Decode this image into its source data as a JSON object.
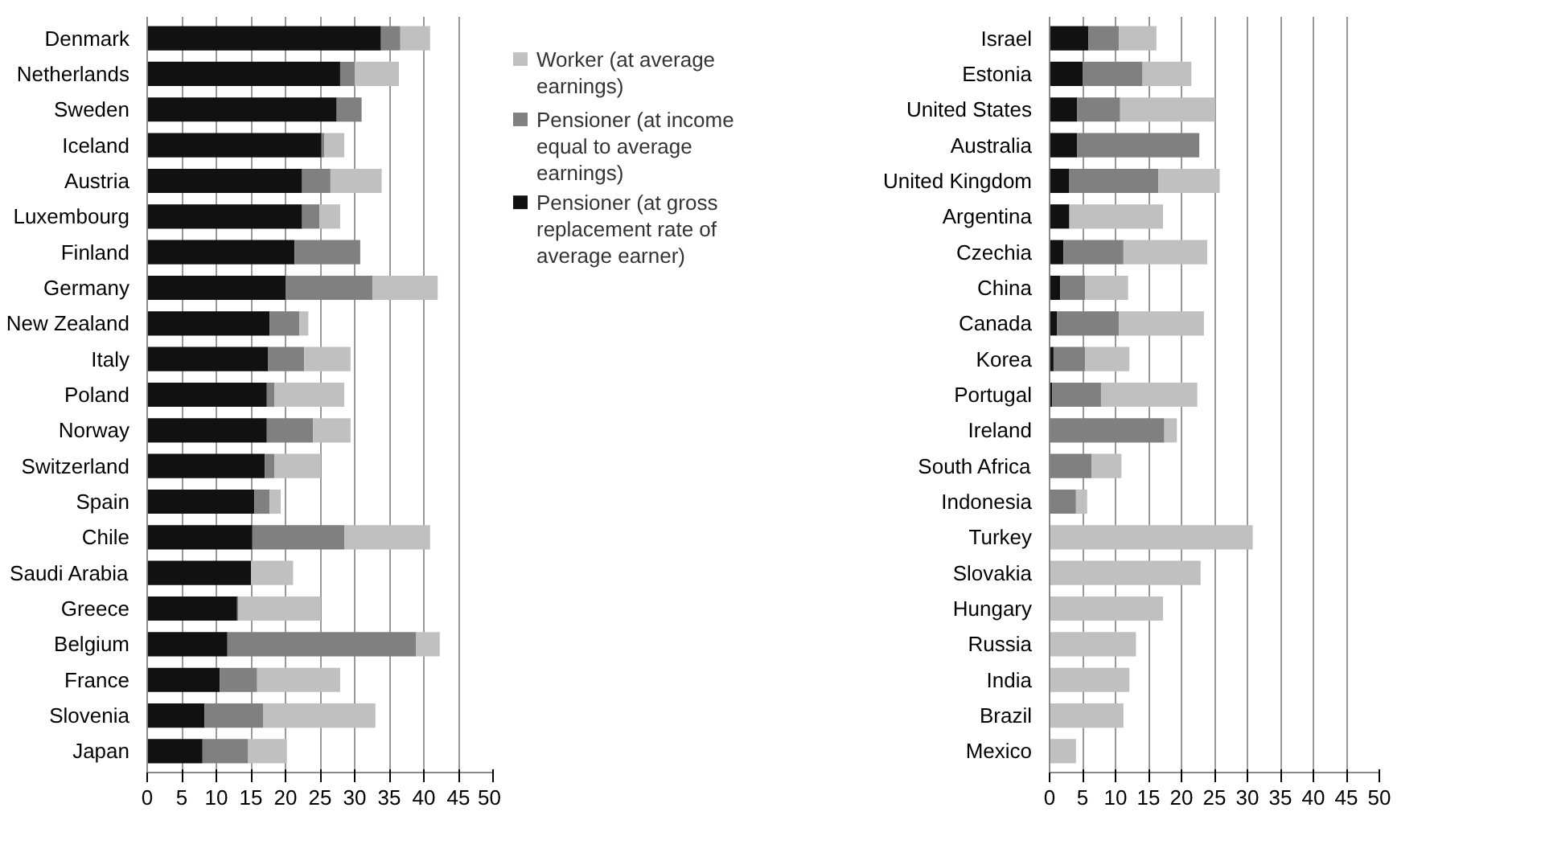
{
  "chart_data": [
    {
      "type": "bar",
      "orientation": "horizontal",
      "stacked": true,
      "grid": "x",
      "legend": "right",
      "categories": [
        "Denmark",
        "Netherlands",
        "Sweden",
        "Iceland",
        "Austria",
        "Luxembourg",
        "Finland",
        "Germany",
        "New Zealand",
        "Italy",
        "Poland",
        "Norway",
        "Switzerland",
        "Spain",
        "Chile",
        "Saudi Arabia",
        "Greece",
        "Belgium",
        "France",
        "Slovenia",
        "Japan"
      ],
      "xlim": [
        0,
        50
      ],
      "xticks": [
        0,
        5,
        10,
        15,
        20,
        25,
        30,
        35,
        40,
        45,
        50
      ],
      "series": [
        {
          "name": "Pensioner (at gross replacement rate of average earner)",
          "color": "#111111",
          "values": [
            33.8,
            27.9,
            27.4,
            25.2,
            22.4,
            22.4,
            21.3,
            20.0,
            17.7,
            17.5,
            17.3,
            17.3,
            17.0,
            15.5,
            15.2,
            15.0,
            13.0,
            11.6,
            10.5,
            8.3,
            8.0
          ]
        },
        {
          "name": "Pensioner (at income equal to average earnings)",
          "color": "#808080",
          "values": [
            2.8,
            2.1,
            3.6,
            0.4,
            4.1,
            2.5,
            9.5,
            12.6,
            4.3,
            5.2,
            1.1,
            6.7,
            1.4,
            2.2,
            13.3,
            0,
            0.2,
            27.3,
            5.4,
            8.5,
            6.6
          ]
        },
        {
          "name": "Worker (at average earnings)",
          "color": "#c0c0c0",
          "values": [
            4.3,
            6.4,
            0,
            2.9,
            7.4,
            3.0,
            0,
            9.4,
            1.3,
            6.7,
            10.1,
            5.4,
            6.7,
            1.6,
            12.4,
            6.1,
            11.9,
            3.4,
            12.0,
            16.2,
            5.6
          ]
        }
      ]
    },
    {
      "type": "bar",
      "orientation": "horizontal",
      "stacked": true,
      "grid": "x",
      "categories": [
        "Israel",
        "Estonia",
        "United States",
        "Australia",
        "United Kingdom",
        "Argentina",
        "Czechia",
        "China",
        "Canada",
        "Korea",
        "Portugal",
        "Ireland",
        "South Africa",
        "Indonesia",
        "Turkey",
        "Slovakia",
        "Hungary",
        "Russia",
        "India",
        "Brazil",
        "Mexico"
      ],
      "xlim": [
        0,
        50
      ],
      "xticks": [
        0,
        5,
        10,
        15,
        20,
        25,
        30,
        35,
        40,
        45,
        50
      ],
      "series": [
        {
          "color": "#111111",
          "values": [
            5.9,
            5.0,
            4.2,
            4.2,
            3.0,
            3.0,
            2.1,
            1.6,
            1.1,
            0.6,
            0.4,
            0,
            0,
            0,
            0,
            0,
            0,
            0,
            0,
            0,
            0
          ]
        },
        {
          "color": "#808080",
          "values": [
            4.6,
            9.1,
            6.5,
            18.5,
            13.5,
            0,
            9.1,
            3.8,
            9.4,
            4.8,
            7.4,
            17.4,
            6.4,
            4.0,
            0,
            0,
            0,
            0,
            0,
            0,
            0
          ]
        },
        {
          "color": "#c0c0c0",
          "values": [
            5.7,
            7.4,
            14.4,
            0,
            9.3,
            14.2,
            12.7,
            6.5,
            12.9,
            6.7,
            14.6,
            1.9,
            4.5,
            1.7,
            30.8,
            22.9,
            17.2,
            13.1,
            12.1,
            11.2,
            4.0
          ]
        }
      ]
    }
  ]
}
